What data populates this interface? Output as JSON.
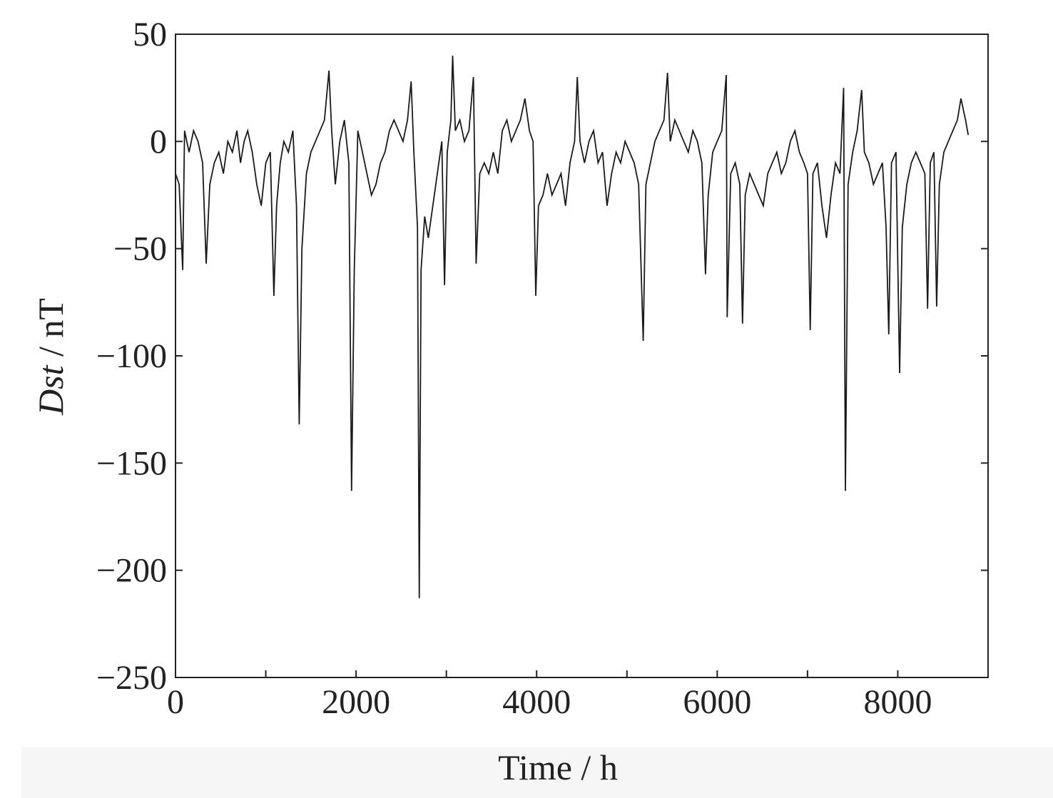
{
  "chart_data": {
    "type": "line",
    "title": "",
    "xlabel": "Time / h",
    "ylabel_italic": "Dst",
    "ylabel_rest": " / nT",
    "xlim": [
      0,
      9000
    ],
    "ylim": [
      -250,
      50
    ],
    "xticks": [
      0,
      2000,
      4000,
      6000,
      8000
    ],
    "xtick_labels": [
      "0",
      "2000",
      "4000",
      "6000",
      "8000"
    ],
    "x_minor_ticks": [
      1000,
      3000,
      5000,
      7000
    ],
    "yticks": [
      50,
      0,
      -50,
      -100,
      -150,
      -200,
      -250
    ],
    "ytick_labels": [
      "50",
      "0",
      "−50",
      "−100",
      "−150",
      "−200",
      "−250"
    ],
    "grid": false,
    "line_color": "#1a1a1a",
    "series": [
      {
        "x": [
          0,
          40,
          80,
          100,
          150,
          200,
          250,
          300,
          340,
          380,
          430,
          480,
          530,
          580,
          630,
          680,
          720,
          760,
          800,
          850,
          900,
          950,
          1000,
          1050,
          1090,
          1120,
          1160,
          1200,
          1250,
          1300,
          1340,
          1370,
          1400,
          1450,
          1500,
          1550,
          1600,
          1650,
          1700,
          1730,
          1770,
          1820,
          1870,
          1920,
          1950,
          1980,
          2020,
          2070,
          2120,
          2170,
          2220,
          2270,
          2320,
          2370,
          2420,
          2470,
          2520,
          2570,
          2610,
          2640,
          2680,
          2700,
          2720,
          2760,
          2800,
          2850,
          2900,
          2950,
          2980,
          3010,
          3050,
          3070,
          3100,
          3150,
          3200,
          3250,
          3300,
          3330,
          3370,
          3420,
          3470,
          3520,
          3570,
          3620,
          3670,
          3720,
          3770,
          3820,
          3870,
          3920,
          3960,
          3990,
          4020,
          4070,
          4120,
          4170,
          4220,
          4270,
          4320,
          4370,
          4420,
          4450,
          4480,
          4530,
          4580,
          4630,
          4680,
          4730,
          4780,
          4830,
          4880,
          4930,
          4980,
          5030,
          5080,
          5130,
          5180,
          5210,
          5260,
          5310,
          5360,
          5410,
          5450,
          5480,
          5530,
          5580,
          5630,
          5680,
          5730,
          5780,
          5830,
          5870,
          5900,
          5950,
          6000,
          6050,
          6100,
          6110,
          6150,
          6200,
          6250,
          6280,
          6310,
          6360,
          6410,
          6460,
          6510,
          6560,
          6610,
          6660,
          6710,
          6760,
          6810,
          6860,
          6910,
          6960,
          7000,
          7030,
          7060,
          7110,
          7160,
          7210,
          7260,
          7310,
          7360,
          7400,
          7420,
          7450,
          7500,
          7550,
          7600,
          7630,
          7680,
          7730,
          7780,
          7830,
          7870,
          7900,
          7930,
          7980,
          8020,
          8050,
          8100,
          8150,
          8200,
          8250,
          8300,
          8330,
          8360,
          8400,
          8430,
          8460,
          8510,
          8560,
          8610,
          8660,
          8700,
          8750,
          8780
        ],
        "y": [
          -15,
          -20,
          -60,
          5,
          -5,
          5,
          0,
          -10,
          -57,
          -20,
          -10,
          -5,
          -15,
          0,
          -5,
          5,
          -10,
          0,
          5,
          -5,
          -20,
          -30,
          -10,
          -5,
          -72,
          -30,
          -10,
          0,
          -5,
          5,
          -30,
          -132,
          -50,
          -15,
          -5,
          0,
          5,
          10,
          33,
          5,
          -20,
          0,
          10,
          -10,
          -163,
          -60,
          5,
          -5,
          -15,
          -25,
          -20,
          -10,
          -5,
          5,
          10,
          5,
          0,
          10,
          28,
          -5,
          -40,
          -213,
          -60,
          -35,
          -45,
          -30,
          -15,
          0,
          -67,
          -5,
          10,
          40,
          5,
          10,
          0,
          5,
          30,
          -57,
          -15,
          -10,
          -15,
          -5,
          -15,
          5,
          10,
          0,
          5,
          10,
          20,
          5,
          0,
          -72,
          -30,
          -25,
          -15,
          -25,
          -20,
          -15,
          -30,
          -10,
          0,
          30,
          0,
          -10,
          0,
          5,
          -10,
          -5,
          -30,
          -15,
          -5,
          -10,
          0,
          -5,
          -10,
          -20,
          -93,
          -20,
          -10,
          0,
          5,
          10,
          32,
          0,
          10,
          5,
          0,
          -5,
          5,
          0,
          -10,
          -62,
          -25,
          -5,
          0,
          5,
          31,
          -82,
          -15,
          -10,
          -20,
          -85,
          -25,
          -15,
          -20,
          -25,
          -30,
          -15,
          -10,
          -5,
          -15,
          -10,
          0,
          5,
          -5,
          -10,
          -15,
          -88,
          -15,
          -10,
          -30,
          -45,
          -25,
          -10,
          -15,
          25,
          -163,
          -20,
          -5,
          5,
          24,
          -5,
          -10,
          -20,
          -15,
          -10,
          -40,
          -90,
          -10,
          -5,
          -108,
          -40,
          -20,
          -10,
          -5,
          -10,
          -15,
          -78,
          -10,
          -5,
          -77,
          -20,
          -5,
          0,
          5,
          10,
          20,
          10,
          3
        ]
      }
    ]
  }
}
